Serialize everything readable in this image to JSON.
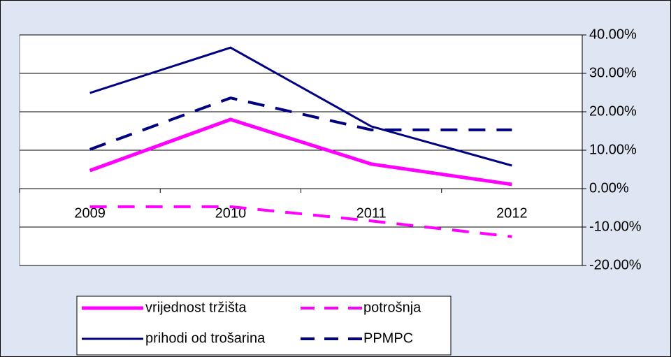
{
  "chart_data": {
    "type": "line",
    "categories": [
      "2009",
      "2010",
      "2011",
      "2012"
    ],
    "series": [
      {
        "name": "vrijednost tržišta",
        "color": "#ff00ff",
        "dashed": false,
        "values": [
          4.7,
          18.0,
          6.4,
          1.1
        ]
      },
      {
        "name": "potrošnja",
        "color": "#ff00ff",
        "dashed": true,
        "values": [
          -4.7,
          -4.7,
          -8.4,
          -12.5
        ]
      },
      {
        "name": "prihodi od trošarina",
        "color": "#000080",
        "dashed": false,
        "values": [
          24.9,
          36.7,
          16.2,
          6.0
        ]
      },
      {
        "name": "PPMPC",
        "color": "#000080",
        "dashed": true,
        "values": [
          10.2,
          23.6,
          15.3,
          15.3
        ]
      }
    ],
    "ylim": [
      -20,
      40
    ],
    "yticks": [
      {
        "value": -20,
        "label": "-20.00%"
      },
      {
        "value": -10,
        "label": "-10.00%"
      },
      {
        "value": 0,
        "label": "0.00%"
      },
      {
        "value": 10,
        "label": "10.00%"
      },
      {
        "value": 20,
        "label": "20.00%"
      },
      {
        "value": 30,
        "label": "30.00%"
      },
      {
        "value": 40,
        "label": "40.00%"
      }
    ],
    "grid": true,
    "yaxis_side": "right",
    "legend": "bottom"
  }
}
